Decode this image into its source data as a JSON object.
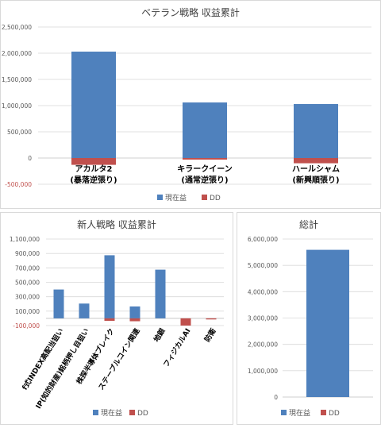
{
  "colors": {
    "profit": "#4f81bd",
    "dd": "#c0504d"
  },
  "chart_data": [
    {
      "type": "bar",
      "title": "ベテラン戦略 収益累計",
      "categories": [
        "アカルタ2",
        "キラークイーン",
        "ハールシャム"
      ],
      "category_sublabels": [
        "(暴落逆張り)",
        "(通常逆張り)",
        "(新興順張り)"
      ],
      "series": [
        {
          "name": "現在益",
          "values": [
            2030000,
            1060000,
            1030000
          ]
        },
        {
          "name": "DD",
          "values": [
            -130000,
            -30000,
            -100000
          ]
        }
      ],
      "ylim": [
        -500000,
        2500000
      ],
      "y_ticks": [
        "-500,000",
        "0",
        "500,000",
        "1,000,000",
        "1,500,000",
        "2,000,000",
        "2,500,000"
      ],
      "grid": true,
      "legend": "bottom"
    },
    {
      "type": "bar",
      "title": "新人戦略 収益累計",
      "categories": [
        "f式INDEX高配当狙い",
        "IP(知的財産)銘柄押し目狙い",
        "株探半導体ブレイク",
        "ステーブルコイン関連",
        "地銀",
        "フィジカルAI",
        "防衛"
      ],
      "series": [
        {
          "name": "現在益",
          "values": [
            400000,
            205000,
            875000,
            165000,
            675000,
            0,
            0
          ]
        },
        {
          "name": "DD",
          "values": [
            0,
            0,
            -35000,
            -40000,
            0,
            -100000,
            -15000
          ]
        }
      ],
      "ylim": [
        -100000,
        1100000
      ],
      "y_ticks": [
        "-100,000",
        "100,000",
        "300,000",
        "500,000",
        "700,000",
        "900,000",
        "1,100,000"
      ],
      "grid": true,
      "legend": "bottom"
    },
    {
      "type": "bar",
      "title": "総計",
      "categories": [
        ""
      ],
      "series": [
        {
          "name": "現在益",
          "values": [
            5590000
          ]
        },
        {
          "name": "DD",
          "values": [
            0
          ]
        }
      ],
      "ylim": [
        0,
        6000000
      ],
      "y_ticks": [
        "0",
        "1,000,000",
        "2,000,000",
        "3,000,000",
        "4,000,000",
        "5,000,000",
        "6,000,000"
      ],
      "grid": true,
      "legend": "bottom"
    }
  ]
}
